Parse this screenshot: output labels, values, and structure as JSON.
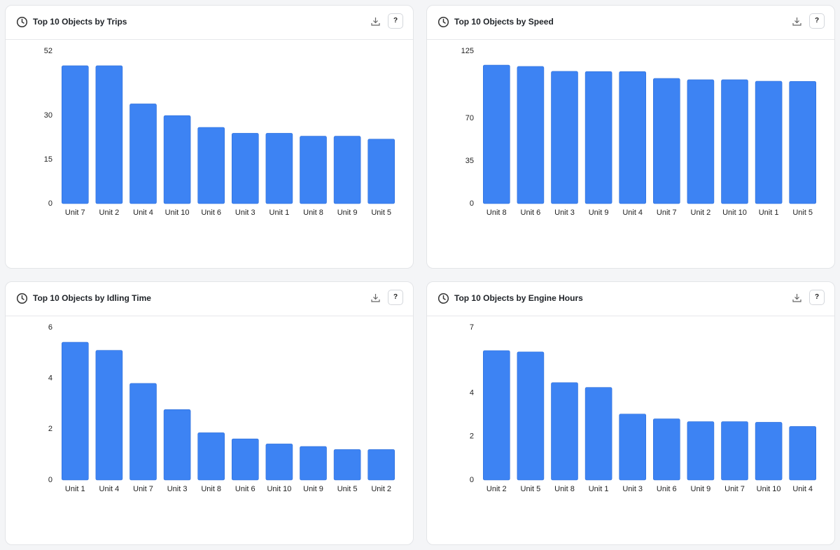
{
  "help_button": "?",
  "chart_data": [
    {
      "type": "bar",
      "title": "Top 10 Objects by Trips",
      "color": "#3d83f3",
      "categories": [
        "Unit 7",
        "Unit 2",
        "Unit 4",
        "Unit 10",
        "Unit 6",
        "Unit 3",
        "Unit 1",
        "Unit 8",
        "Unit 9",
        "Unit 5"
      ],
      "values": [
        47,
        47,
        34,
        30,
        26,
        24,
        24,
        23,
        23,
        22
      ],
      "ylim": [
        0,
        52
      ],
      "yticks": [
        0,
        15,
        30,
        52
      ],
      "grid": false
    },
    {
      "type": "bar",
      "title": "Top 10 Objects by Speed",
      "color": "#3d83f3",
      "categories": [
        "Unit 8",
        "Unit 6",
        "Unit 3",
        "Unit 9",
        "Unit 4",
        "Unit 7",
        "Unit 2",
        "Unit 10",
        "Unit 1",
        "Unit 5"
      ],
      "values": [
        113.5,
        112.4,
        108.4,
        108.2,
        108.2,
        102.6,
        101.5,
        101.5,
        100.3,
        100.2
      ],
      "ylim": [
        0,
        125
      ],
      "yticks": [
        0,
        35,
        70,
        125
      ],
      "grid": false
    },
    {
      "type": "bar",
      "title": "Top 10 Objects by Idling Time",
      "color": "#3d83f3",
      "categories": [
        "Unit 1",
        "Unit 4",
        "Unit 7",
        "Unit 3",
        "Unit 8",
        "Unit 6",
        "Unit 10",
        "Unit 9",
        "Unit 5",
        "Unit 2"
      ],
      "values": [
        5.42,
        5.1,
        3.8,
        2.77,
        1.86,
        1.62,
        1.42,
        1.32,
        1.2,
        1.2
      ],
      "ylim": [
        0,
        6
      ],
      "yticks": [
        0,
        2,
        4,
        6
      ],
      "grid": false
    },
    {
      "type": "bar",
      "title": "Top 10 Objects by Engine Hours",
      "color": "#3d83f3",
      "categories": [
        "Unit 2",
        "Unit 5",
        "Unit 8",
        "Unit 1",
        "Unit 3",
        "Unit 6",
        "Unit 9",
        "Unit 7",
        "Unit 10",
        "Unit 4"
      ],
      "values": [
        5.94,
        5.88,
        4.47,
        4.25,
        3.03,
        2.81,
        2.68,
        2.68,
        2.65,
        2.46
      ],
      "ylim": [
        0,
        7
      ],
      "yticks": [
        0,
        2,
        4,
        7
      ],
      "grid": false
    }
  ]
}
